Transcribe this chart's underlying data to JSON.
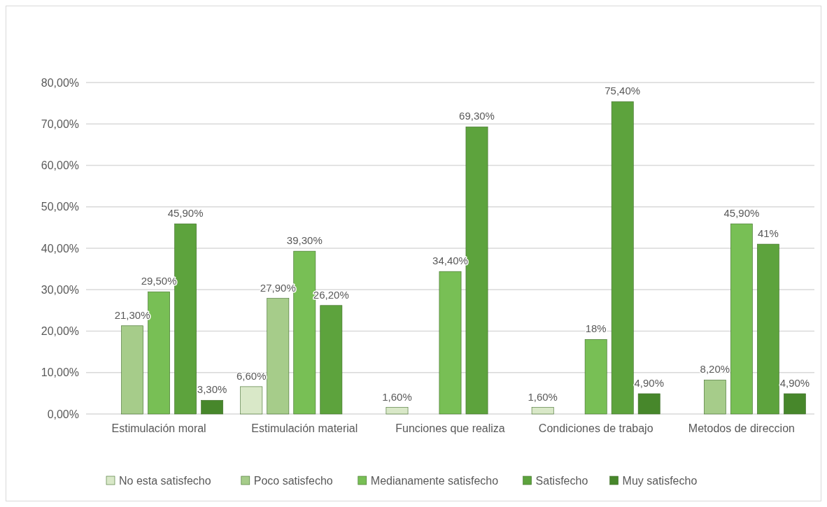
{
  "chart_data": {
    "type": "bar",
    "categories": [
      "Estimulación moral",
      "Estimulación material",
      "Funciones que realiza",
      "Condiciones de trabajo",
      "Metodos de direccion"
    ],
    "series": [
      {
        "name": "No esta satisfecho",
        "color": "#d9e8c8",
        "values": [
          null,
          6.6,
          1.6,
          1.6,
          null
        ],
        "value_labels": [
          null,
          "6,60%",
          "1,60%",
          "1,60%",
          null
        ]
      },
      {
        "name": "Poco satisfecho",
        "color": "#a6cc8a",
        "values": [
          21.3,
          27.9,
          null,
          null,
          8.2
        ],
        "value_labels": [
          "21,30%",
          "27,90%",
          null,
          null,
          "8,20%"
        ]
      },
      {
        "name": "Medianamente satisfecho",
        "color": "#78bf55",
        "values": [
          29.5,
          39.3,
          34.4,
          18,
          45.9
        ],
        "value_labels": [
          "29,50%",
          "39,30%",
          "34,40%",
          "18%",
          "45,90%"
        ]
      },
      {
        "name": "Satisfecho",
        "color": "#5da33d",
        "values": [
          45.9,
          26.2,
          69.3,
          75.4,
          41
        ],
        "value_labels": [
          "45,90%",
          "26,20%",
          "69,30%",
          "75,40%",
          "41%"
        ]
      },
      {
        "name": "Muy satisfecho",
        "color": "#47872b",
        "values": [
          3.3,
          null,
          null,
          4.9,
          4.9
        ],
        "value_labels": [
          "3,30%",
          null,
          null,
          "4,90%",
          "4,90%"
        ]
      }
    ],
    "ylim": [
      0,
      80
    ],
    "yticks": [
      {
        "value": 0,
        "label": "0,00%"
      },
      {
        "value": 10,
        "label": "10,00%"
      },
      {
        "value": 20,
        "label": "20,00%"
      },
      {
        "value": 30,
        "label": "30,00%"
      },
      {
        "value": 40,
        "label": "40,00%"
      },
      {
        "value": 50,
        "label": "50,00%"
      },
      {
        "value": 60,
        "label": "60,00%"
      },
      {
        "value": 70,
        "label": "70,00%"
      },
      {
        "value": 80,
        "label": "80,00%"
      }
    ],
    "grid": "y",
    "legend": "bottom"
  }
}
